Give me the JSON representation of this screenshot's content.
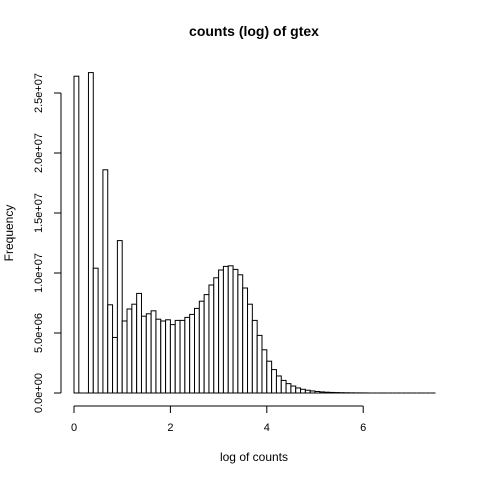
{
  "chart_data": {
    "type": "bar",
    "title": "counts (log) of gtex",
    "xlabel": "log of counts",
    "ylabel": "Frequency",
    "bin_width": 0.1,
    "x_start": 0,
    "xlim": [
      0,
      7.5
    ],
    "ylim": [
      0,
      27000000
    ],
    "x_ticks": [
      0,
      2,
      4,
      6
    ],
    "x_tick_labels": [
      "0",
      "2",
      "4",
      "6"
    ],
    "y_ticks": [
      0,
      5000000,
      10000000,
      15000000,
      20000000,
      25000000
    ],
    "y_tick_labels": [
      "0.0e+00",
      "5.0e+06",
      "1.0e+07",
      "1.5e+07",
      "2.0e+07",
      "2.5e+07"
    ],
    "grid": false,
    "values": [
      26400000,
      0,
      0,
      26700000,
      10400000,
      0,
      18600000,
      7350000,
      4630000,
      12700000,
      6000000,
      7000000,
      7400000,
      8300000,
      6400000,
      6600000,
      6850000,
      6150000,
      6000000,
      6100000,
      5700000,
      6050000,
      6050000,
      6300000,
      6550000,
      7050000,
      7650000,
      8200000,
      9000000,
      9600000,
      10250000,
      10550000,
      10600000,
      10300000,
      9850000,
      8750000,
      7400000,
      6050000,
      4800000,
      3600000,
      2650000,
      1950000,
      1420000,
      1050000,
      780000,
      580000,
      420000,
      310000,
      230000,
      170000,
      125000,
      90000,
      65000,
      48000,
      35000,
      25000,
      18000,
      13000,
      9500,
      7000,
      5000,
      3600,
      2600,
      1900,
      1400,
      1000,
      700,
      500,
      350,
      250,
      180,
      120,
      80,
      50,
      30
    ]
  }
}
